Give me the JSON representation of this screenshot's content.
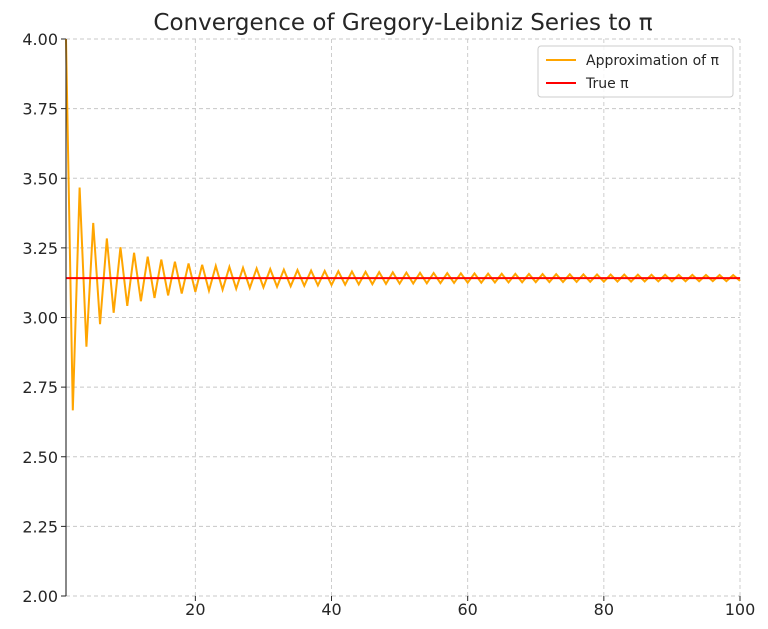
{
  "chart_data": {
    "type": "line",
    "title": "Convergence of Gregory-Leibniz Series to π",
    "xlabel": "",
    "ylabel": "",
    "xlim": [
      1,
      100
    ],
    "ylim": [
      2.0,
      4.0
    ],
    "x_ticks": [
      20,
      40,
      60,
      80,
      100
    ],
    "y_ticks": [
      2.0,
      2.25,
      2.5,
      2.75,
      3.0,
      3.25,
      3.5,
      3.75,
      4.0
    ],
    "y_tick_labels": [
      "2.00",
      "2.25",
      "2.50",
      "2.75",
      "3.00",
      "3.25",
      "3.50",
      "3.75",
      "4.00"
    ],
    "grid": true,
    "legend_position": "top-right",
    "series": [
      {
        "name": "Approximation of π",
        "color": "#FFA500",
        "x": [
          1,
          2,
          3,
          4,
          5,
          6,
          7,
          8,
          9,
          10,
          11,
          12,
          13,
          14,
          15,
          16,
          17,
          18,
          19,
          20,
          21,
          22,
          23,
          24,
          25,
          26,
          27,
          28,
          29,
          30,
          31,
          32,
          33,
          34,
          35,
          36,
          37,
          38,
          39,
          40,
          41,
          42,
          43,
          44,
          45,
          46,
          47,
          48,
          49,
          50,
          51,
          52,
          53,
          54,
          55,
          56,
          57,
          58,
          59,
          60,
          61,
          62,
          63,
          64,
          65,
          66,
          67,
          68,
          69,
          70,
          71,
          72,
          73,
          74,
          75,
          76,
          77,
          78,
          79,
          80,
          81,
          82,
          83,
          84,
          85,
          86,
          87,
          88,
          89,
          90,
          91,
          92,
          93,
          94,
          95,
          96,
          97,
          98,
          99,
          100
        ],
        "values": [
          4.0,
          2.6667,
          3.4667,
          2.8952,
          3.3397,
          2.976,
          3.2837,
          3.0171,
          3.2524,
          3.0418,
          3.2323,
          3.0584,
          3.2184,
          3.0703,
          3.2082,
          3.0792,
          3.2004,
          3.0861,
          3.1942,
          3.0918,
          3.1892,
          3.0962,
          3.185,
          3.1,
          3.1816,
          3.1032,
          3.1786,
          3.106,
          3.1761,
          3.1083,
          3.1738,
          3.1104,
          3.1719,
          3.1122,
          3.1702,
          3.1138,
          3.1686,
          3.1153,
          3.1673,
          3.1166,
          3.166,
          3.1177,
          3.1649,
          3.1188,
          3.1639,
          3.1197,
          3.163,
          3.1206,
          3.1621,
          3.1216,
          3.1612,
          3.1222,
          3.1605,
          3.1229,
          3.1598,
          3.1235,
          3.1592,
          3.1241,
          3.1586,
          3.1249,
          3.1582,
          3.1251,
          3.1576,
          3.1256,
          3.1572,
          3.1261,
          3.1567,
          3.1265,
          3.1563,
          3.1269,
          3.1559,
          3.1273,
          3.1556,
          3.1276,
          3.1552,
          3.1279,
          3.1549,
          3.1283,
          3.1546,
          3.1286,
          3.1543,
          3.1289,
          3.1541,
          3.1291,
          3.1538,
          3.1294,
          3.1536,
          3.1296,
          3.1533,
          3.1299,
          3.1531,
          3.1301,
          3.1529,
          3.1303,
          3.1527,
          3.1305,
          3.1525,
          3.1307,
          3.1523,
          3.1316
        ]
      },
      {
        "name": "True π",
        "color": "#FF0000",
        "x": [
          1,
          100
        ],
        "values": [
          3.14159,
          3.14159
        ]
      }
    ]
  }
}
